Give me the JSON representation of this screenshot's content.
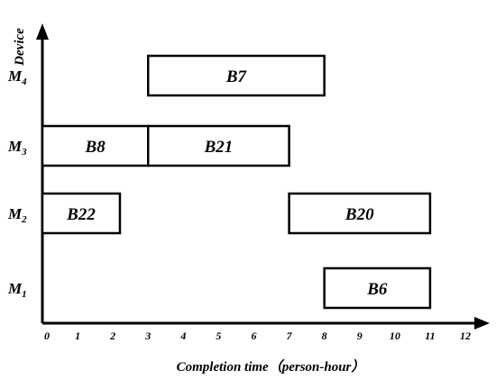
{
  "chart_data": {
    "type": "gantt",
    "title": "",
    "xlabel": "Completion time（person-hour）",
    "ylabel": "Device",
    "xlim": [
      0,
      12
    ],
    "xticks": [
      "0",
      "1",
      "2",
      "3",
      "4",
      "5",
      "6",
      "7",
      "8",
      "9",
      "10",
      "11",
      "12"
    ],
    "machines": [
      {
        "base": "M",
        "sub": "1"
      },
      {
        "base": "M",
        "sub": "2"
      },
      {
        "base": "M",
        "sub": "3"
      },
      {
        "base": "M",
        "sub": "4"
      }
    ],
    "tasks": [
      {
        "label": "B6",
        "machine": 0,
        "start": 8,
        "end": 11
      },
      {
        "label": "B22",
        "machine": 1,
        "start": 0,
        "end": 2.2
      },
      {
        "label": "B20",
        "machine": 1,
        "start": 7,
        "end": 11
      },
      {
        "label": "B8",
        "machine": 2,
        "start": 0,
        "end": 3
      },
      {
        "label": "B21",
        "machine": 2,
        "start": 3,
        "end": 7
      },
      {
        "label": "B7",
        "machine": 3,
        "start": 3,
        "end": 8
      }
    ]
  }
}
